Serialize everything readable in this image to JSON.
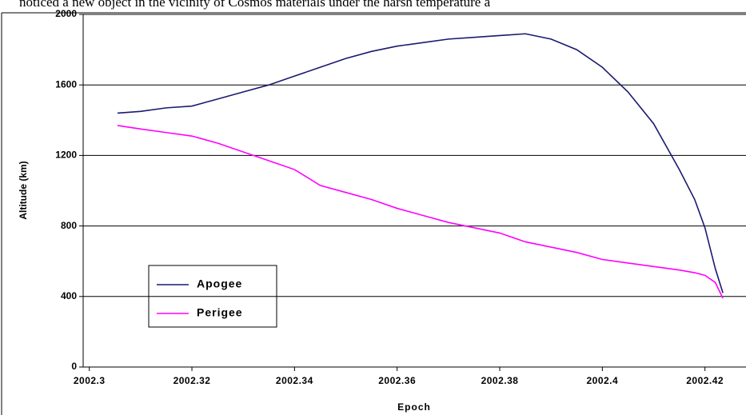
{
  "header_text": "noticed a new object in the vicinity of Cosmos materials under the harsh temperature a",
  "chart_data": {
    "type": "line",
    "xlabel": "Epoch",
    "ylabel": "Altitude (km)",
    "xlim": [
      2002.2988,
      2002.428
    ],
    "ylim": [
      0,
      2000
    ],
    "xticks": [
      2002.3,
      2002.32,
      2002.34,
      2002.36,
      2002.38,
      2002.4,
      2002.42
    ],
    "yticks": [
      0,
      400,
      800,
      1200,
      1600,
      2000
    ],
    "grid": true,
    "legend": "lower left",
    "x": [
      2002.3055,
      2002.31,
      2002.315,
      2002.32,
      2002.325,
      2002.33,
      2002.335,
      2002.34,
      2002.345,
      2002.35,
      2002.355,
      2002.36,
      2002.365,
      2002.37,
      2002.375,
      2002.38,
      2002.385,
      2002.39,
      2002.395,
      2002.4,
      2002.405,
      2002.41,
      2002.415,
      2002.418,
      2002.42,
      2002.422,
      2002.4235
    ],
    "series": [
      {
        "name": "Apogee",
        "color": "#1a1a70",
        "values": [
          1440,
          1450,
          1470,
          1480,
          1520,
          1560,
          1600,
          1650,
          1700,
          1750,
          1790,
          1820,
          1840,
          1860,
          1870,
          1880,
          1890,
          1860,
          1800,
          1700,
          1560,
          1380,
          1120,
          950,
          790,
          560,
          420
        ]
      },
      {
        "name": "Perigee",
        "color": "#ff00ff",
        "values": [
          1370,
          1350,
          1330,
          1310,
          1270,
          1220,
          1170,
          1120,
          1030,
          990,
          950,
          900,
          860,
          820,
          790,
          760,
          710,
          680,
          650,
          610,
          590,
          570,
          550,
          535,
          520,
          480,
          390
        ]
      }
    ]
  }
}
